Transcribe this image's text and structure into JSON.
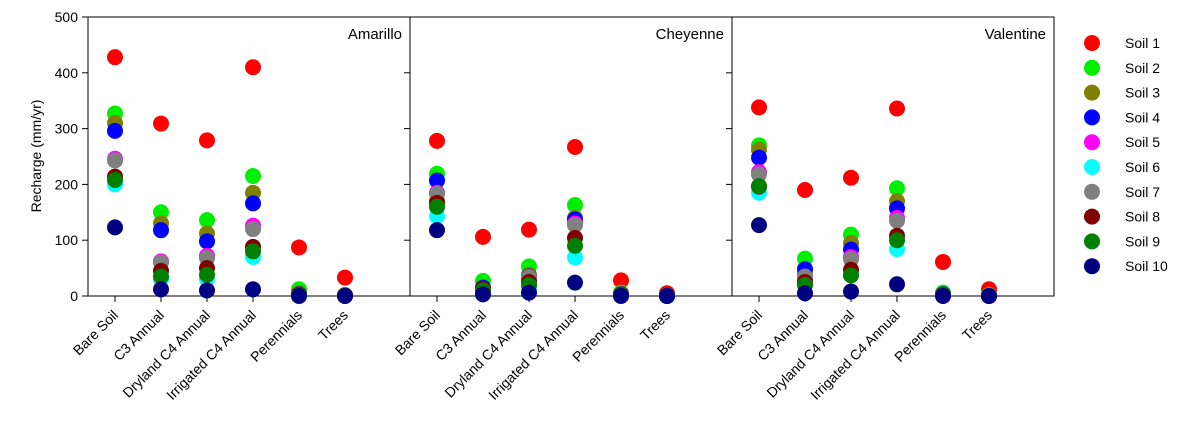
{
  "chart_data": {
    "type": "scatter",
    "ylabel": "Recharge (mm/yr)",
    "ylim": [
      0,
      500
    ],
    "yticks": [
      0,
      100,
      200,
      300,
      400,
      500
    ],
    "yticklabels": [
      "0",
      "100",
      "200",
      "300",
      "400",
      "500"
    ],
    "categories": [
      "Bare Soil",
      "C3 Annual",
      "Dryland C4 Annual",
      "Irrigated C4 Annual",
      "Perennials",
      "Trees"
    ],
    "legend_position": "right",
    "series": [
      {
        "name": "Soil 1",
        "color": "#ff0000"
      },
      {
        "name": "Soil 2",
        "color": "#00ee00"
      },
      {
        "name": "Soil 3",
        "color": "#808000"
      },
      {
        "name": "Soil 4",
        "color": "#0000ff"
      },
      {
        "name": "Soil 5",
        "color": "#ff00ff"
      },
      {
        "name": "Soil 6",
        "color": "#00ffff"
      },
      {
        "name": "Soil 7",
        "color": "#808080"
      },
      {
        "name": "Soil 8",
        "color": "#800000"
      },
      {
        "name": "Soil 9",
        "color": "#008000"
      },
      {
        "name": "Soil 10",
        "color": "#000080"
      }
    ],
    "panels": [
      {
        "title": "Amarillo",
        "values": [
          [
            428,
            309,
            279,
            410,
            87,
            33
          ],
          [
            327,
            150,
            136,
            215,
            12,
            2
          ],
          [
            310,
            130,
            112,
            185,
            5,
            1
          ],
          [
            296,
            118,
            98,
            166,
            3,
            1
          ],
          [
            246,
            62,
            72,
            126,
            2,
            1
          ],
          [
            200,
            30,
            30,
            70,
            1,
            0
          ],
          [
            243,
            60,
            68,
            120,
            2,
            1
          ],
          [
            214,
            45,
            50,
            88,
            2,
            1
          ],
          [
            208,
            35,
            38,
            80,
            1,
            0
          ],
          [
            123,
            12,
            10,
            12,
            0,
            0
          ]
        ]
      },
      {
        "title": "Cheyenne",
        "values": [
          [
            278,
            106,
            119,
            267,
            28,
            5
          ],
          [
            219,
            27,
            53,
            163,
            6,
            1
          ],
          [
            170,
            15,
            38,
            140,
            4,
            1
          ],
          [
            207,
            15,
            35,
            137,
            3,
            1
          ],
          [
            185,
            8,
            30,
            130,
            2,
            0
          ],
          [
            143,
            5,
            15,
            69,
            1,
            0
          ],
          [
            183,
            12,
            34,
            127,
            2,
            0
          ],
          [
            167,
            13,
            25,
            104,
            2,
            0
          ],
          [
            160,
            10,
            20,
            90,
            1,
            0
          ],
          [
            118,
            3,
            6,
            24,
            0,
            0
          ]
        ]
      },
      {
        "title": "Valentine",
        "values": [
          [
            338,
            190,
            212,
            336,
            61,
            12
          ],
          [
            270,
            67,
            110,
            193,
            6,
            2
          ],
          [
            262,
            40,
            95,
            170,
            3,
            1
          ],
          [
            248,
            48,
            83,
            157,
            3,
            1
          ],
          [
            222,
            30,
            70,
            140,
            2,
            1
          ],
          [
            185,
            20,
            40,
            84,
            1,
            0
          ],
          [
            218,
            35,
            66,
            135,
            2,
            1
          ],
          [
            196,
            25,
            47,
            108,
            2,
            0
          ],
          [
            197,
            20,
            37,
            100,
            1,
            0
          ],
          [
            127,
            5,
            8,
            21,
            0,
            0
          ]
        ]
      }
    ]
  }
}
